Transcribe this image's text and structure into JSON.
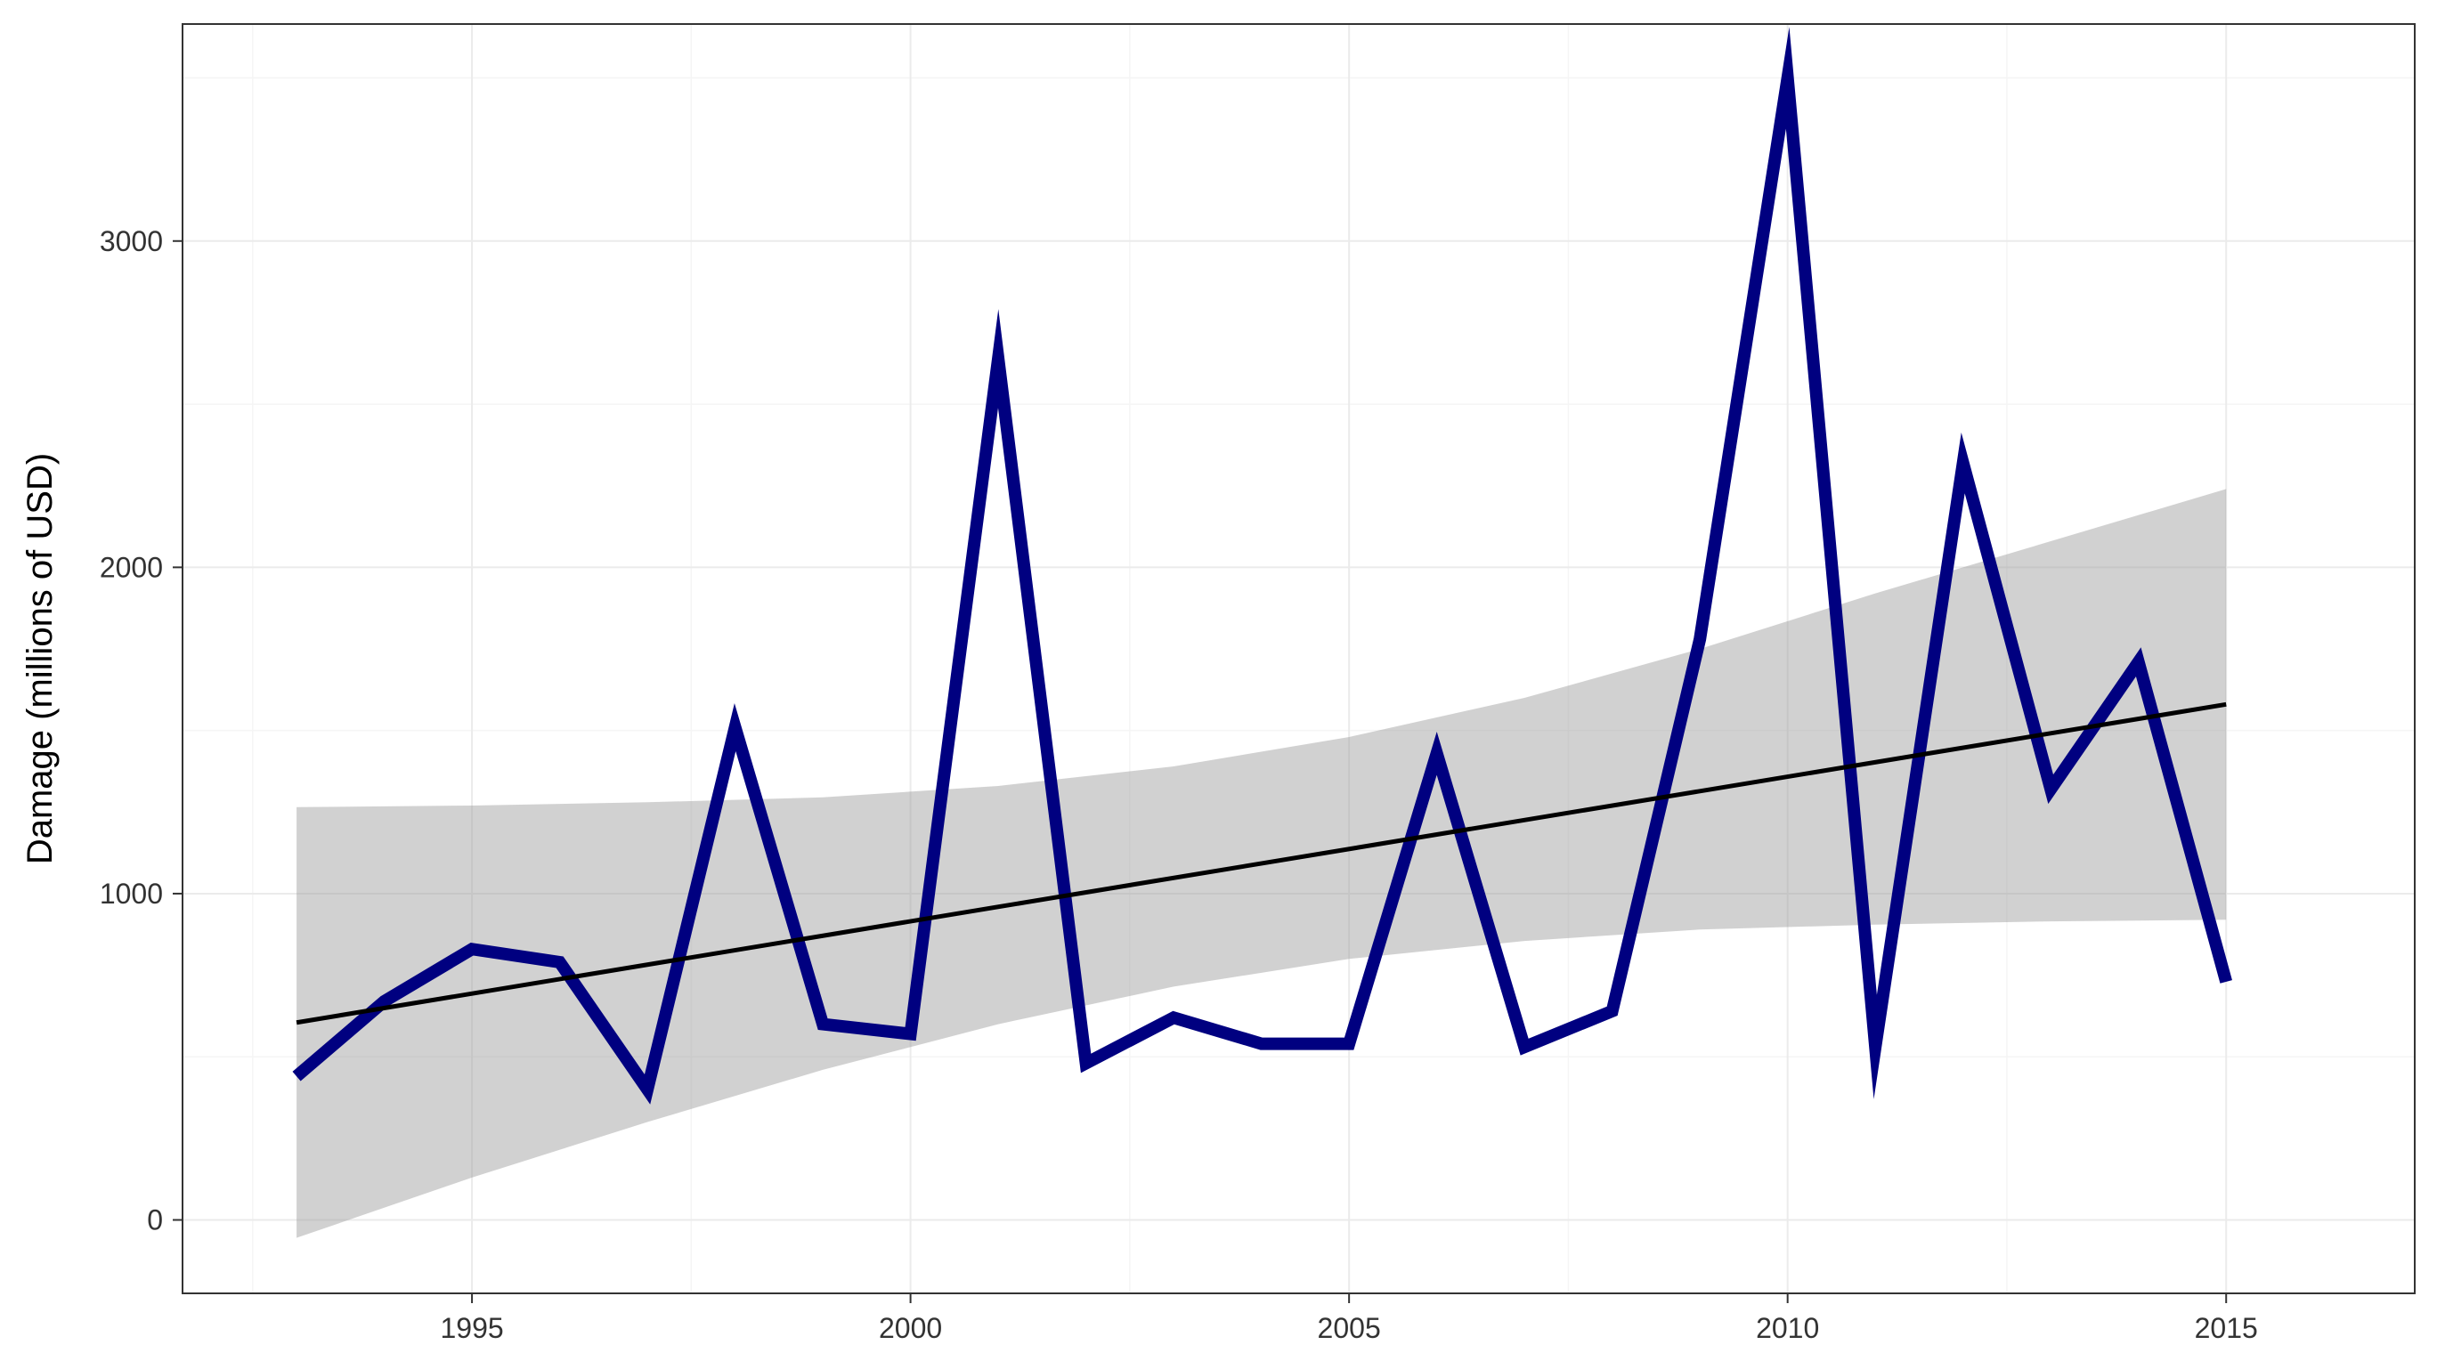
{
  "chart_data": {
    "type": "line",
    "title": "",
    "xlabel": "",
    "ylabel": "Damage (millions of USD)",
    "xlim": [
      1991.7,
      2017.15
    ],
    "ylim": [
      -225,
      3665
    ],
    "x_ticks": [
      1995,
      2000,
      2005,
      2010,
      2015
    ],
    "x_tick_labels": [
      "1995",
      "2000",
      "2005",
      "2010",
      "2015"
    ],
    "y_ticks": [
      0,
      1000,
      2000,
      3000
    ],
    "y_tick_labels": [
      "0",
      "1000",
      "2000",
      "3000"
    ],
    "grid": true,
    "legend": "none",
    "series": [
      {
        "x": [
          1993,
          1994,
          1995,
          1996,
          1997,
          1998,
          1999,
          2000,
          2001,
          2002,
          2003,
          2004,
          2005,
          2006,
          2007,
          2008,
          2009,
          2010,
          2011,
          2012,
          2013,
          2014,
          2015
        ],
        "values": [
          440,
          670,
          830,
          790,
          400,
          1510,
          600,
          570,
          2640,
          480,
          620,
          540,
          540,
          1430,
          530,
          640,
          1780,
          3500,
          530,
          2320,
          1320,
          1710,
          730
        ],
        "color": "#000080"
      }
    ],
    "trend_line": {
      "x": [
        1993,
        2015
      ],
      "values": [
        605,
        1580
      ],
      "color": "#000000"
    },
    "confidence_band": {
      "x": [
        1993,
        1995,
        1997,
        1999,
        2001,
        2003,
        2005,
        2007,
        2009,
        2011,
        2013,
        2015
      ],
      "upper": [
        1265,
        1270,
        1280,
        1295,
        1330,
        1390,
        1480,
        1600,
        1750,
        1920,
        2080,
        2240
      ],
      "lower": [
        -55,
        130,
        300,
        460,
        600,
        715,
        800,
        855,
        890,
        905,
        915,
        920
      ],
      "color": "#999999"
    },
    "colors": {
      "background": "#ffffff",
      "panel_border": "#333333",
      "grid_major": "#ebebeb",
      "grid_minor": "#f5f5f5"
    }
  }
}
